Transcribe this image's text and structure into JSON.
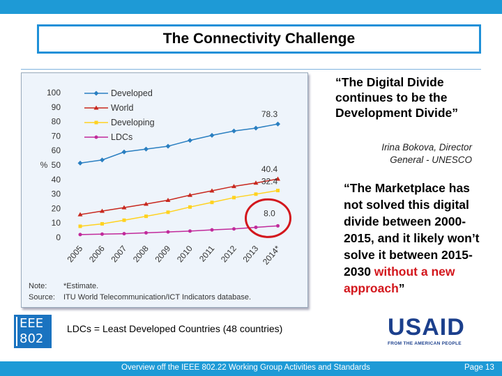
{
  "slide": {
    "title": "The Connectivity Challenge",
    "quote1": "“The Digital Divide continues to be the Development Divide”",
    "attribution": "Irina Bokova, Director General - UNESCO",
    "quote2_main": "“The Marketplace has not solved this digital divide between 2000-2015, and it likely won’t solve it between 2015-2030 ",
    "quote2_red": "without a new approach",
    "quote2_end": "”",
    "ldc_note": "LDCs = Least Developed Countries (48 countries)",
    "ieee_logo_line1": "EEE",
    "ieee_logo_line2": "802",
    "usaid_logo_word": "USAID",
    "usaid_logo_sub": "FROM THE AMERICAN PEOPLE",
    "footer": "Overview off the IEEE 802.22 Working Group Activities and Standards",
    "page": "Page 13"
  },
  "chart_data": {
    "type": "line",
    "x": [
      "2005",
      "2006",
      "2007",
      "2008",
      "2009",
      "2010",
      "2011",
      "2012",
      "2013",
      "2014*"
    ],
    "ylabel": "%",
    "ylim": [
      0,
      100
    ],
    "yticks": [
      0,
      10,
      20,
      30,
      40,
      50,
      60,
      70,
      80,
      90,
      100
    ],
    "legend_position": "top-left",
    "series": [
      {
        "name": "Developed",
        "color": "#2a7fc1",
        "values": [
          51.3,
          53.5,
          59,
          61,
          63,
          67,
          70.5,
          73.5,
          75.5,
          78.3
        ]
      },
      {
        "name": "World",
        "color": "#c8281e",
        "values": [
          15.8,
          18.2,
          20.6,
          23.1,
          25.7,
          29.2,
          32.2,
          35.3,
          37.6,
          40.4
        ]
      },
      {
        "name": "Developing",
        "color": "#ffd21f",
        "values": [
          7.7,
          9.4,
          11.9,
          14.6,
          17.4,
          21.0,
          24.2,
          27.5,
          29.9,
          32.4
        ]
      },
      {
        "name": "LDCs",
        "color": "#c12a9b",
        "values": [
          2,
          2.3,
          2.6,
          3.2,
          3.8,
          4.4,
          5.2,
          5.9,
          7.0,
          8.0
        ]
      }
    ],
    "data_labels": [
      {
        "series": "Developed",
        "x": "2014*",
        "text": "78.3"
      },
      {
        "series": "World",
        "x": "2014*",
        "text": "40.4"
      },
      {
        "series": "Developing",
        "x": "2014*",
        "text": "32.4"
      },
      {
        "series": "LDCs",
        "x": "2014*",
        "text": "8.0"
      }
    ],
    "note_label": "Note:",
    "note_text": "*Estimate.",
    "source_label": "Source:",
    "source_text": "ITU World Telecommunication/ICT Indicators database."
  }
}
